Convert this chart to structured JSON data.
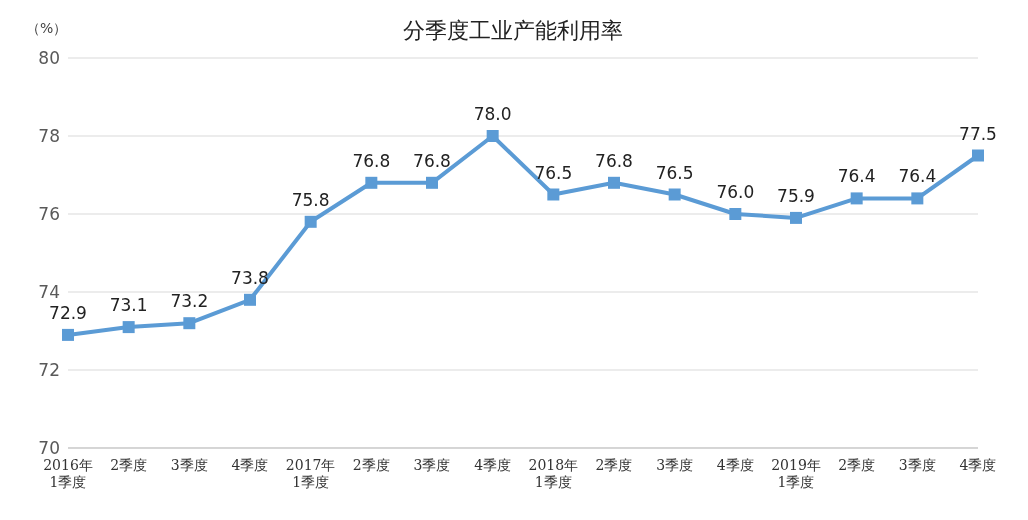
{
  "chart_data": {
    "type": "line",
    "title": "分季度工业产能利用率",
    "ylabel": "（%）",
    "categories": [
      "2016年\n1季度",
      "2季度",
      "3季度",
      "4季度",
      "2017年\n1季度",
      "2季度",
      "3季度",
      "4季度",
      "2018年\n1季度",
      "2季度",
      "3季度",
      "4季度",
      "2019年\n1季度",
      "2季度",
      "3季度",
      "4季度"
    ],
    "series": [
      {
        "color": "#5b9bd5",
        "values": [
          72.9,
          73.1,
          73.2,
          73.8,
          75.8,
          76.8,
          76.8,
          78.0,
          76.5,
          76.8,
          76.5,
          76.0,
          75.9,
          76.4,
          76.4,
          77.5
        ],
        "value_labels": [
          "72.9",
          "73.1",
          "73.2",
          "73.8",
          "75.8",
          "76.8",
          "76.8",
          "78.0",
          "76.5",
          "76.8",
          "76.5",
          "76.0",
          "75.9",
          "76.4",
          "76.4",
          "77.5"
        ]
      }
    ],
    "ylim": [
      70,
      80
    ],
    "yticks": [
      70,
      72,
      74,
      76,
      78,
      80
    ],
    "grid": "y",
    "marker": "square",
    "line_style": "solid",
    "legend": false
  }
}
